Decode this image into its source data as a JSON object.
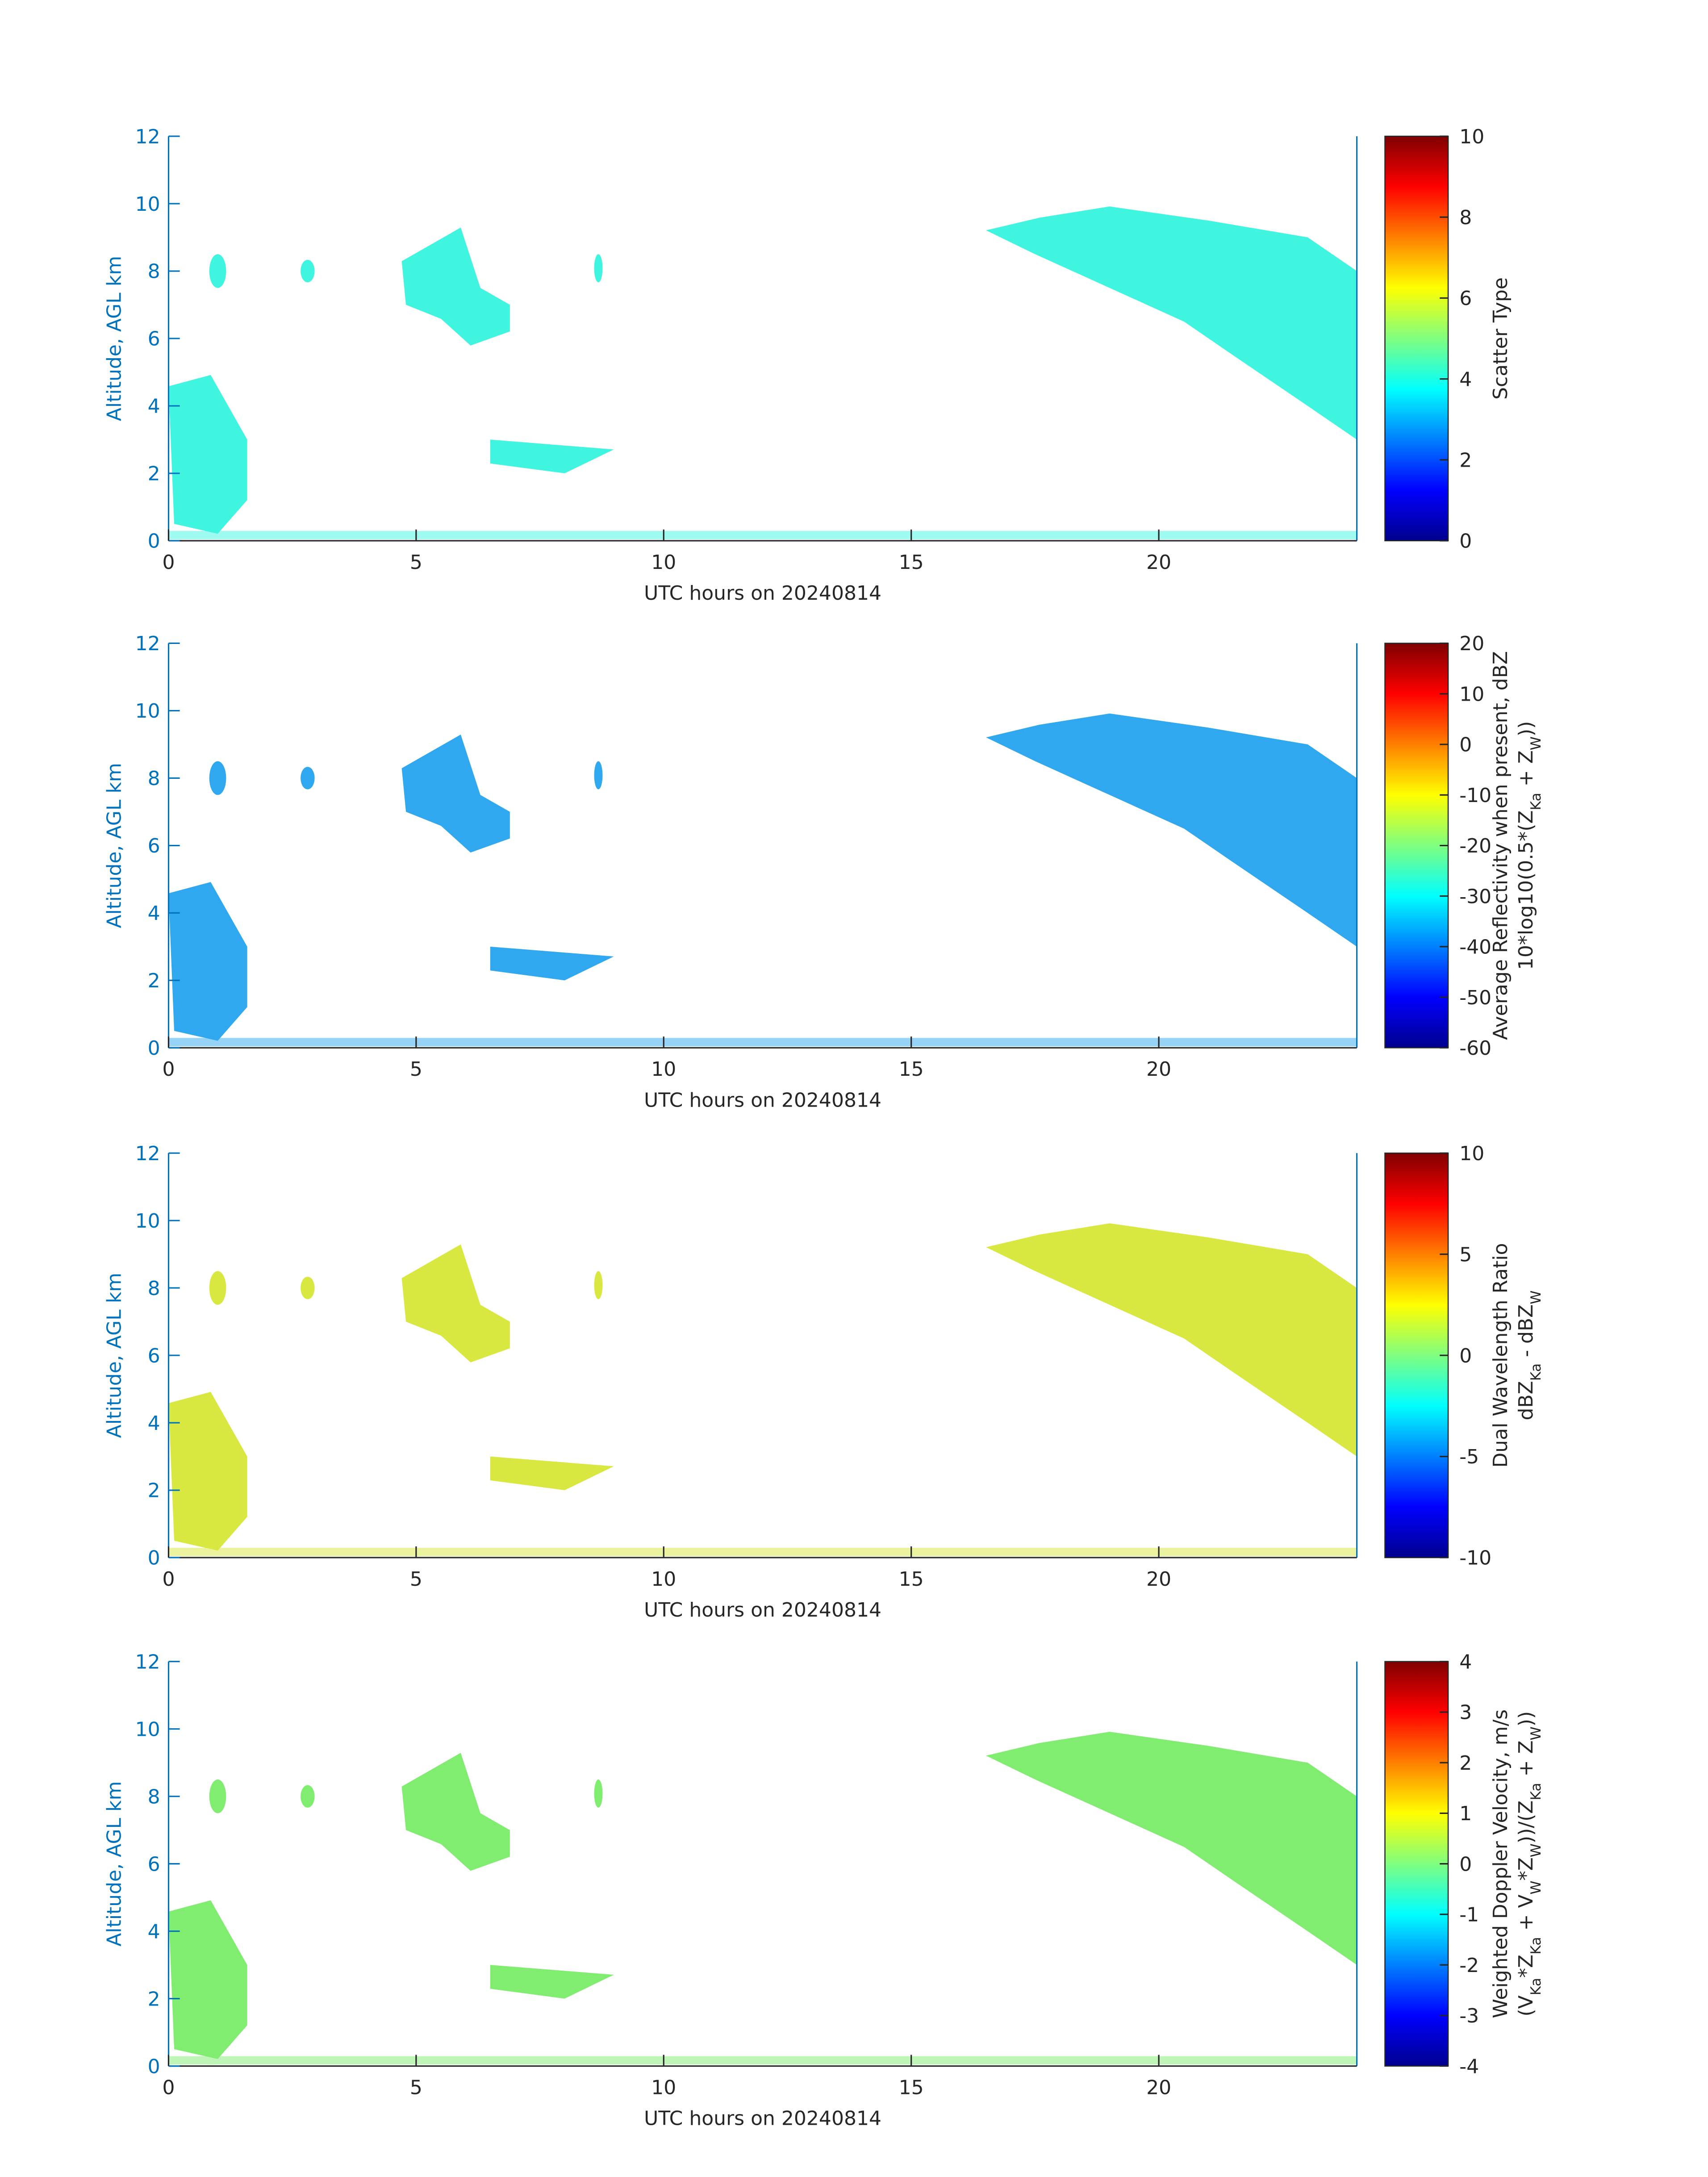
{
  "chart_data": [
    {
      "type": "heatmap",
      "x_label": "UTC hours on 20240814",
      "y_label": "Altitude, AGL km",
      "xlim": [
        0,
        24
      ],
      "xticks": [
        0,
        5,
        10,
        15,
        20
      ],
      "ylim": [
        0,
        12
      ],
      "yticks": [
        0,
        2,
        4,
        6,
        8,
        10,
        12
      ],
      "axis_color": "#0072bd",
      "colorbar": {
        "colormap": "jet",
        "clim": [
          0,
          10
        ],
        "ticks": [
          0,
          2,
          4,
          6,
          8,
          10
        ],
        "label": [
          [
            {
              "text": "Scatter Type"
            }
          ]
        ]
      }
    },
    {
      "type": "heatmap",
      "x_label": "UTC hours on 20240814",
      "y_label": "Altitude, AGL km",
      "xlim": [
        0,
        24
      ],
      "xticks": [
        0,
        5,
        10,
        15,
        20
      ],
      "ylim": [
        0,
        12
      ],
      "yticks": [
        0,
        2,
        4,
        6,
        8,
        10,
        12
      ],
      "axis_color": "#0072bd",
      "colorbar": {
        "colormap": "jet",
        "clim": [
          -60,
          20
        ],
        "ticks": [
          -60,
          -50,
          -40,
          -30,
          -20,
          -10,
          0,
          10,
          20
        ],
        "label": [
          [
            {
              "text": "Average Reflectivity when present, dBZ"
            }
          ],
          [
            {
              "text": "10*log10(0.5*(Z"
            },
            {
              "text": "Ka",
              "sub": true
            },
            {
              "text": " + Z"
            },
            {
              "text": "W",
              "sub": true
            },
            {
              "text": "))"
            }
          ]
        ]
      }
    },
    {
      "type": "heatmap",
      "x_label": "UTC hours on 20240814",
      "y_label": "Altitude, AGL km",
      "xlim": [
        0,
        24
      ],
      "xticks": [
        0,
        5,
        10,
        15,
        20
      ],
      "ylim": [
        0,
        12
      ],
      "yticks": [
        0,
        2,
        4,
        6,
        8,
        10,
        12
      ],
      "axis_color": "#0072bd",
      "colorbar": {
        "colormap": "jet",
        "clim": [
          -10,
          10
        ],
        "ticks": [
          -10,
          -5,
          0,
          5,
          10
        ],
        "label": [
          [
            {
              "text": "Dual Wavelength Ratio"
            }
          ],
          [
            {
              "text": "dBZ"
            },
            {
              "text": "Ka",
              "sub": true
            },
            {
              "text": " - dBZ"
            },
            {
              "text": "W",
              "sub": true
            }
          ]
        ]
      }
    },
    {
      "type": "heatmap",
      "x_label": "UTC hours on 20240814",
      "y_label": "Altitude, AGL km",
      "xlim": [
        0,
        24
      ],
      "xticks": [
        0,
        5,
        10,
        15,
        20
      ],
      "ylim": [
        0,
        12
      ],
      "yticks": [
        0,
        2,
        4,
        6,
        8,
        10,
        12
      ],
      "axis_color": "#0072bd",
      "colorbar": {
        "colormap": "jet",
        "clim": [
          -4,
          4
        ],
        "ticks": [
          -4,
          -3,
          -2,
          -1,
          0,
          1,
          2,
          3,
          4
        ],
        "label": [
          [
            {
              "text": "Weighted Doppler Velocity, m/s"
            }
          ],
          [
            {
              "text": "(V"
            },
            {
              "text": "Ka",
              "sub": true
            },
            {
              "text": "*Z"
            },
            {
              "text": "Ka",
              "sub": true
            },
            {
              "text": " + V"
            },
            {
              "text": "W",
              "sub": true
            },
            {
              "text": "*Z"
            },
            {
              "text": "W",
              "sub": true
            },
            {
              "text": "))/(Z"
            },
            {
              "text": "Ka",
              "sub": true
            },
            {
              "text": " + Z"
            },
            {
              "text": "W",
              "sub": true
            },
            {
              "text": "))"
            }
          ]
        ]
      }
    }
  ]
}
